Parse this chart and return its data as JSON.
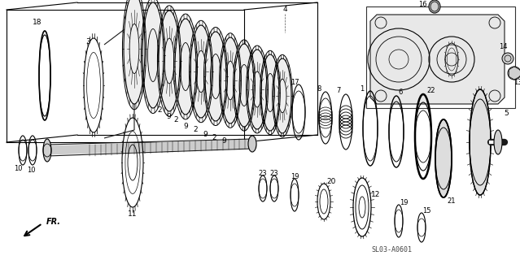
{
  "bg_color": "#ffffff",
  "diagram_code": "SL03-A0601",
  "lc": "#1a1a1a",
  "fig_width": 6.39,
  "fig_height": 3.2,
  "dpi": 100
}
